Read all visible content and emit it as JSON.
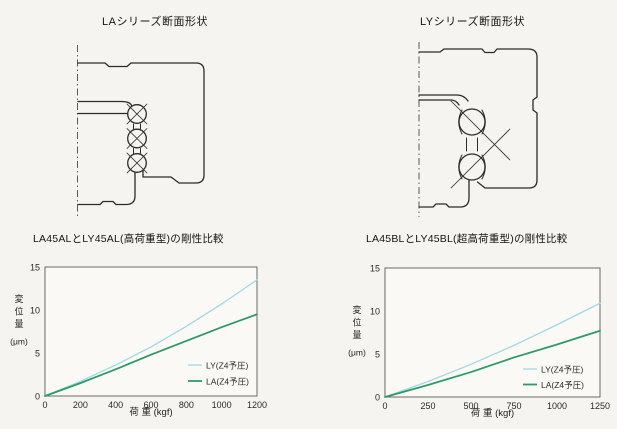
{
  "page": {
    "bg": "#f5f4f0"
  },
  "diagrams": {
    "la": {
      "title": "LAシリーズ断面形状"
    },
    "ly": {
      "title": "LYシリーズ断面形状"
    }
  },
  "chart_data": [
    {
      "type": "line",
      "title": "LA45ALとLY45AL(高荷重型)の剛性比較",
      "xlabel": "荷 重 (kgf)",
      "ylabel": "変位量",
      "ylabel_unit": "(μm)",
      "xlim": [
        0,
        1200
      ],
      "ylim": [
        0,
        15
      ],
      "xticks": [
        0,
        200,
        400,
        600,
        800,
        1000,
        1200
      ],
      "yticks": [
        0,
        5,
        10,
        15
      ],
      "x": [
        0,
        200,
        400,
        600,
        800,
        1000,
        1200
      ],
      "series": [
        {
          "name": "LY(Z4予圧)",
          "color": "#9fd8e8",
          "values": [
            0,
            1.7,
            3.6,
            5.7,
            8.1,
            10.7,
            13.5
          ]
        },
        {
          "name": "LA(Z4予圧)",
          "color": "#2e9a69",
          "values": [
            0,
            1.5,
            3.1,
            4.8,
            6.4,
            8.0,
            9.5
          ]
        }
      ],
      "legend_position": "lower-right",
      "grid": false
    },
    {
      "type": "line",
      "title": "LA45BLとLY45BL(超高荷重型)の剛性比較",
      "xlabel": "荷 重 (kgf)",
      "ylabel": "変位量",
      "ylabel_unit": "(μm)",
      "xlim": [
        0,
        1250
      ],
      "ylim": [
        0,
        15
      ],
      "xticks": [
        0,
        250,
        500,
        750,
        1000,
        1250
      ],
      "yticks": [
        0,
        5,
        10,
        15
      ],
      "x": [
        0,
        250,
        500,
        750,
        1000,
        1250
      ],
      "series": [
        {
          "name": "LY(Z4予圧)",
          "color": "#9fd8e8",
          "values": [
            0,
            1.8,
            3.8,
            6.0,
            8.4,
            10.9
          ]
        },
        {
          "name": "LA(Z4予圧)",
          "color": "#2e9a69",
          "values": [
            0,
            1.4,
            2.9,
            4.6,
            6.1,
            7.7
          ]
        }
      ],
      "legend_position": "lower-right",
      "grid": false
    }
  ]
}
